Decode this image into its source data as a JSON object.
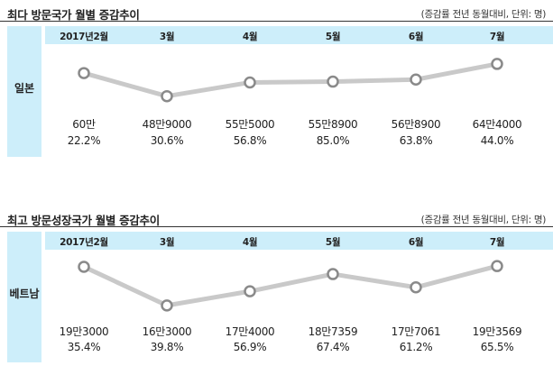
{
  "chart_data": [
    {
      "type": "line",
      "title": "최다 방문국가 월별 증감추이",
      "note": "(증감률 전년 동월대비, 단위: 명)",
      "series_label": "일본",
      "categories": [
        "2017년2월",
        "3월",
        "4월",
        "5월",
        "6월",
        "7월"
      ],
      "values": [
        600000,
        489000,
        555000,
        558900,
        568900,
        644000
      ],
      "value_labels": [
        "60만",
        "48만9000",
        "55만5000",
        "55만8900",
        "56만8900",
        "64만4000"
      ],
      "growth_labels": [
        "22.2%",
        "30.6%",
        "56.8%",
        "85.0%",
        "63.8%",
        "44.0%"
      ],
      "ylim": [
        440000,
        700000
      ],
      "colors": {
        "line": "#c9c9c9",
        "marker_stroke": "#8a8a8a",
        "marker_fill": "#ffffff",
        "band": "#cdeefa"
      }
    },
    {
      "type": "line",
      "title": "최고 방문성장국가 월별 증감추이",
      "note": "(증감률 전년 동월대비, 단위: 명)",
      "series_label": "베트남",
      "categories": [
        "2017년2월",
        "3월",
        "4월",
        "5월",
        "6월",
        "7월"
      ],
      "values": [
        193000,
        163000,
        174000,
        187359,
        177061,
        193569
      ],
      "value_labels": [
        "19만3000",
        "16만3000",
        "17만4000",
        "18만7359",
        "17만7061",
        "19만3569"
      ],
      "growth_labels": [
        "35.4%",
        "39.8%",
        "56.9%",
        "67.4%",
        "61.2%",
        "65.5%"
      ],
      "ylim": [
        158000,
        200000
      ],
      "colors": {
        "line": "#c9c9c9",
        "marker_stroke": "#8a8a8a",
        "marker_fill": "#ffffff",
        "band": "#cdeefa"
      }
    }
  ]
}
